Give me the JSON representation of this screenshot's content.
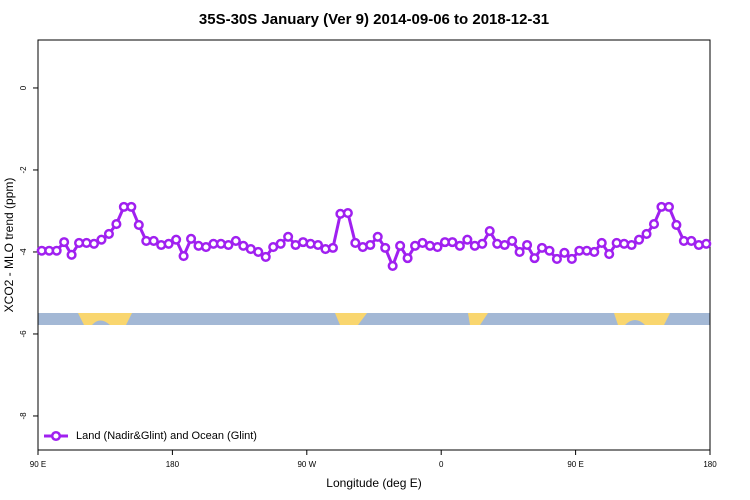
{
  "chart_data": {
    "type": "line",
    "title": "35S-30S January (Ver 9)   2014-09-06 to 2018-12-31",
    "x_label": "Longitude (deg E)",
    "y_label": "XCO2 - MLO trend (ppm)",
    "xlim": [
      90,
      540
    ],
    "ylim": [
      -8.83,
      1.17
    ],
    "xticks": [
      {
        "value": 90,
        "label": "90 E"
      },
      180,
      {
        "value": 270,
        "label": "90 W"
      },
      {
        "value": 360,
        "label": "0"
      },
      {
        "value": 450,
        "label": "90 E"
      },
      {
        "value": 540,
        "label": "180"
      }
    ],
    "yticks": [
      0,
      -2,
      -4,
      -6,
      -8
    ],
    "legend": "bottom-left",
    "x": [
      92.5,
      97.5,
      102.5,
      107.5,
      112.5,
      117.5,
      122.5,
      127.5,
      132.5,
      137.5,
      142.5,
      147.5,
      152.5,
      157.5,
      162.5,
      167.5,
      172.5,
      177.5,
      182.5,
      187.5,
      192.5,
      197.5,
      202.5,
      207.5,
      212.5,
      217.5,
      222.5,
      227.5,
      232.5,
      237.5,
      242.5,
      247.5,
      252.5,
      257.5,
      262.5,
      267.5,
      272.5,
      277.5,
      282.5,
      287.5,
      292.5,
      297.5,
      302.5,
      307.5,
      312.5,
      317.5,
      322.5,
      327.5,
      332.5,
      337.5,
      342.5,
      347.5,
      352.5,
      357.5,
      362.5,
      367.5,
      372.5,
      377.5,
      382.5,
      387.5,
      392.5,
      397.5,
      402.5,
      407.5,
      412.5,
      417.5,
      422.5,
      427.5,
      432.5,
      437.5,
      442.5,
      447.5,
      452.5,
      457.5,
      462.5,
      467.5,
      472.5,
      477.5,
      482.5,
      487.5,
      492.5,
      497.5,
      502.5,
      507.5,
      512.5,
      517.5,
      522.5,
      527.5,
      532.5,
      537.5
    ],
    "series": [
      {
        "name": "Land (Nadir&Glint) and Ocean (Glint)",
        "color": "#a020f0",
        "values": [
          -3.97,
          -3.97,
          -3.97,
          -3.76,
          -4.07,
          -3.78,
          -3.78,
          -3.8,
          -3.7,
          -3.56,
          -3.32,
          -2.9,
          -2.9,
          -3.34,
          -3.73,
          -3.73,
          -3.83,
          -3.8,
          -3.7,
          -4.1,
          -3.68,
          -3.85,
          -3.88,
          -3.8,
          -3.8,
          -3.83,
          -3.73,
          -3.85,
          -3.93,
          -4.0,
          -4.12,
          -3.88,
          -3.8,
          -3.63,
          -3.83,
          -3.76,
          -3.8,
          -3.83,
          -3.93,
          -3.9,
          -3.07,
          -3.05,
          -3.78,
          -3.88,
          -3.83,
          -3.63,
          -3.9,
          -4.34,
          -3.85,
          -4.15,
          -3.85,
          -3.78,
          -3.85,
          -3.88,
          -3.76,
          -3.76,
          -3.85,
          -3.7,
          -3.85,
          -3.8,
          -3.49,
          -3.8,
          -3.83,
          -3.73,
          -4.0,
          -3.83,
          -4.15,
          -3.9,
          -3.97,
          -4.17,
          -4.02,
          -4.17,
          -3.97,
          -3.97,
          -4.0,
          -3.78,
          -4.05,
          -3.78,
          -3.8,
          -3.83,
          -3.7,
          -3.56,
          -3.32,
          -2.9,
          -2.9,
          -3.34,
          -3.73,
          -3.73,
          -3.83,
          -3.8
        ]
      }
    ]
  }
}
